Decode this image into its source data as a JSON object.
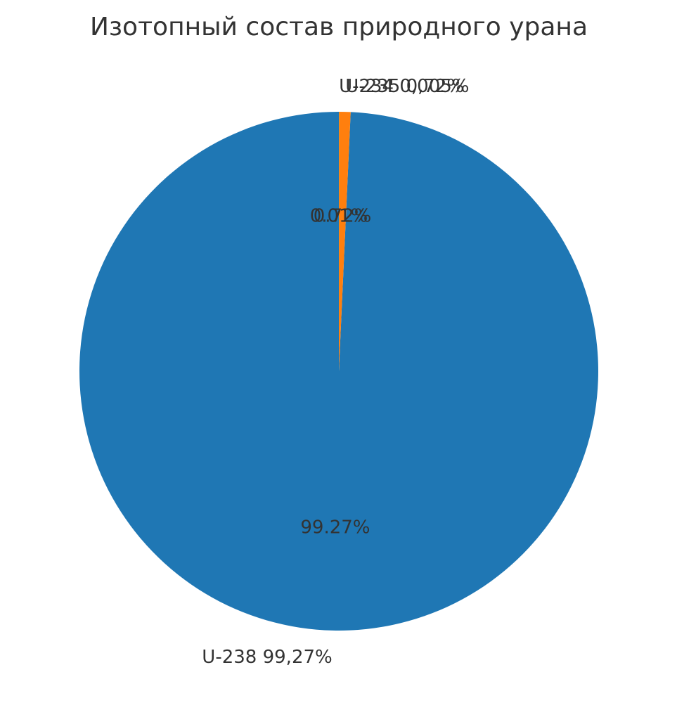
{
  "chart_data": {
    "type": "pie",
    "title": "Изотопный состав природного урана",
    "slices": [
      {
        "label": "U-238 99,27%",
        "pct_label": "99.27%",
        "value": 99.27,
        "color": "#1f77b4"
      },
      {
        "label": "U-235 0,72%",
        "pct_label": "0.72%",
        "value": 0.72,
        "color": "#ff7f0e"
      },
      {
        "label": "U-234 0,005%",
        "pct_label": "0.01%",
        "value": 0.005,
        "color": "#2ca02c"
      }
    ],
    "legend": "none"
  }
}
